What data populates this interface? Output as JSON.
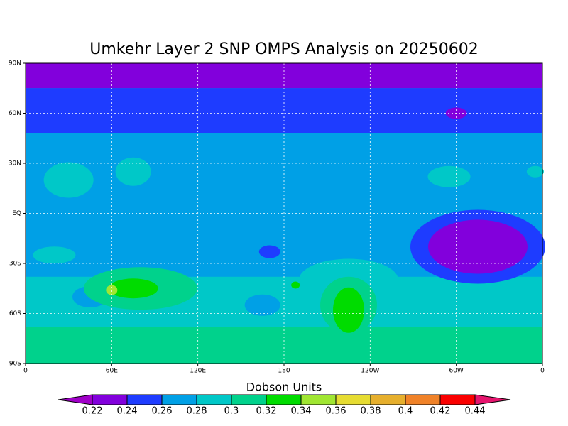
{
  "title": "Umkehr Layer 2 SNP OMPS Analysis on 20250602",
  "map": {
    "xticks": [
      "0",
      "60E",
      "120E",
      "180",
      "120W",
      "60W",
      "0"
    ],
    "yticks": [
      "90N",
      "60N",
      "30N",
      "EQ",
      "30S",
      "60S",
      "90S"
    ]
  },
  "colorbar": {
    "label": "Dobson Units",
    "levels": [
      0.22,
      0.24,
      0.26,
      0.28,
      0.3,
      0.32,
      0.34,
      0.36,
      0.38,
      0.4,
      0.42,
      0.44
    ],
    "colors": [
      "#a000c8",
      "#8200dc",
      "#1e3cff",
      "#00a0e6",
      "#00c8c8",
      "#00d28c",
      "#00dc00",
      "#a0e632",
      "#e6dc32",
      "#e6af2d",
      "#f08228",
      "#fa0000",
      "#e6156e"
    ]
  }
}
